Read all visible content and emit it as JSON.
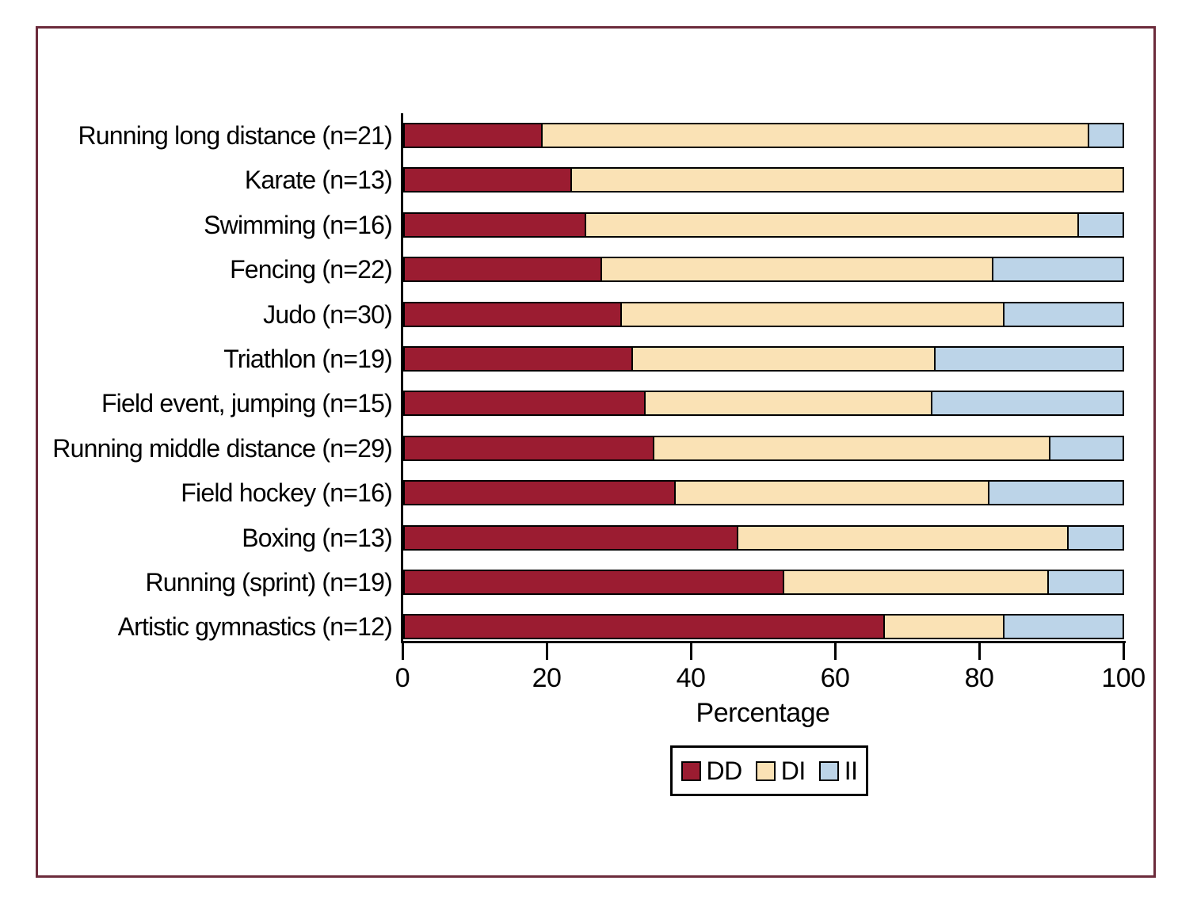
{
  "frame_color": "#6c2b3b",
  "chart_data": {
    "type": "bar",
    "variant": "horizontal-stacked",
    "title": "",
    "xlabel": "Percentage",
    "ylabel": "",
    "xlim": [
      0,
      100
    ],
    "x_ticks": [
      0,
      20,
      40,
      60,
      80,
      100
    ],
    "grid": false,
    "bar_outline_color": "#000000",
    "categories": [
      "Running long distance (n=21)",
      "Karate (n=13)",
      "Swimming (n=16)",
      "Fencing (n=22)",
      "Judo (n=30)",
      "Triathlon (n=19)",
      "Field event, jumping (n=15)",
      "Running middle distance (n=29)",
      "Field hockey (n=16)",
      "Boxing (n=13)",
      "Running (sprint) (n=19)",
      "Artistic gymnastics (n=12)"
    ],
    "series": [
      {
        "name": "DD",
        "color": "#9b1c31",
        "values": [
          19.0,
          23.1,
          25.0,
          27.3,
          30.0,
          31.6,
          33.3,
          34.5,
          37.5,
          46.2,
          52.6,
          66.7
        ]
      },
      {
        "name": "DI",
        "color": "#fae2b5",
        "values": [
          76.2,
          76.9,
          68.75,
          54.5,
          53.3,
          42.1,
          40.0,
          55.2,
          43.75,
          46.1,
          36.9,
          16.65
        ]
      },
      {
        "name": "II",
        "color": "#bcd4e8",
        "values": [
          4.8,
          0,
          6.25,
          18.2,
          16.7,
          26.3,
          26.7,
          10.3,
          18.75,
          7.7,
          10.5,
          16.65
        ]
      }
    ],
    "legend": {
      "position": "below-axis",
      "entries": [
        {
          "label": "DD",
          "color": "#9b1c31"
        },
        {
          "label": "DI",
          "color": "#fae2b5"
        },
        {
          "label": "II",
          "color": "#bcd4e8"
        }
      ]
    }
  }
}
